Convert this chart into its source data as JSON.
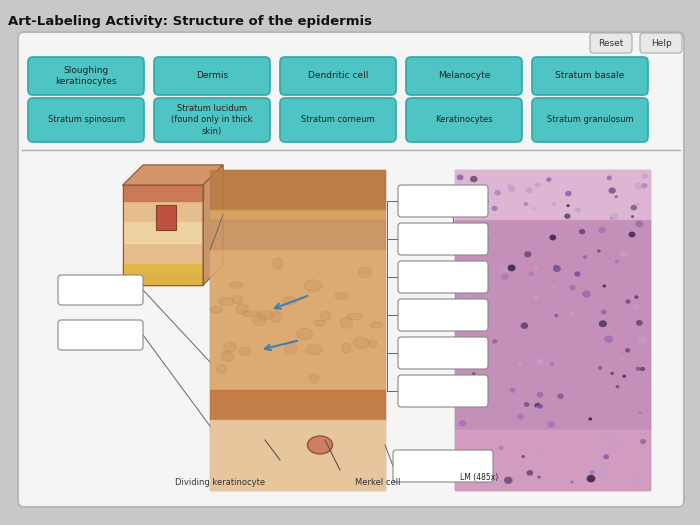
{
  "title": "Art-Labeling Activity: Structure of the epidermis",
  "title_fontsize": 9.5,
  "bg_color": "#c8c8c8",
  "panel_bg": "#f0f0f0",
  "panel_border": "#b0b0b0",
  "button_color": "#4ec4c4",
  "button_text_color": "#222222",
  "button_border": "#30a8a8",
  "label_box_bg": "#ffffff",
  "label_box_border": "#888888",
  "row1_buttons": [
    "Sloughing\nkeratinocytes",
    "Dermis",
    "Dendritic cell",
    "Melanocyte",
    "Stratum basale"
  ],
  "row2_buttons": [
    "Stratum spinosum",
    "Stratum lucidum\n(found only in thick\nskin)",
    "Stratum corneum",
    "Keratinocytes",
    "Stratum granulosum"
  ],
  "bottom_labels": [
    "Dividing keratinocyte",
    "Merkel cell"
  ],
  "lm_label": "LM (485x)",
  "divider_color": "#aaaaaa"
}
